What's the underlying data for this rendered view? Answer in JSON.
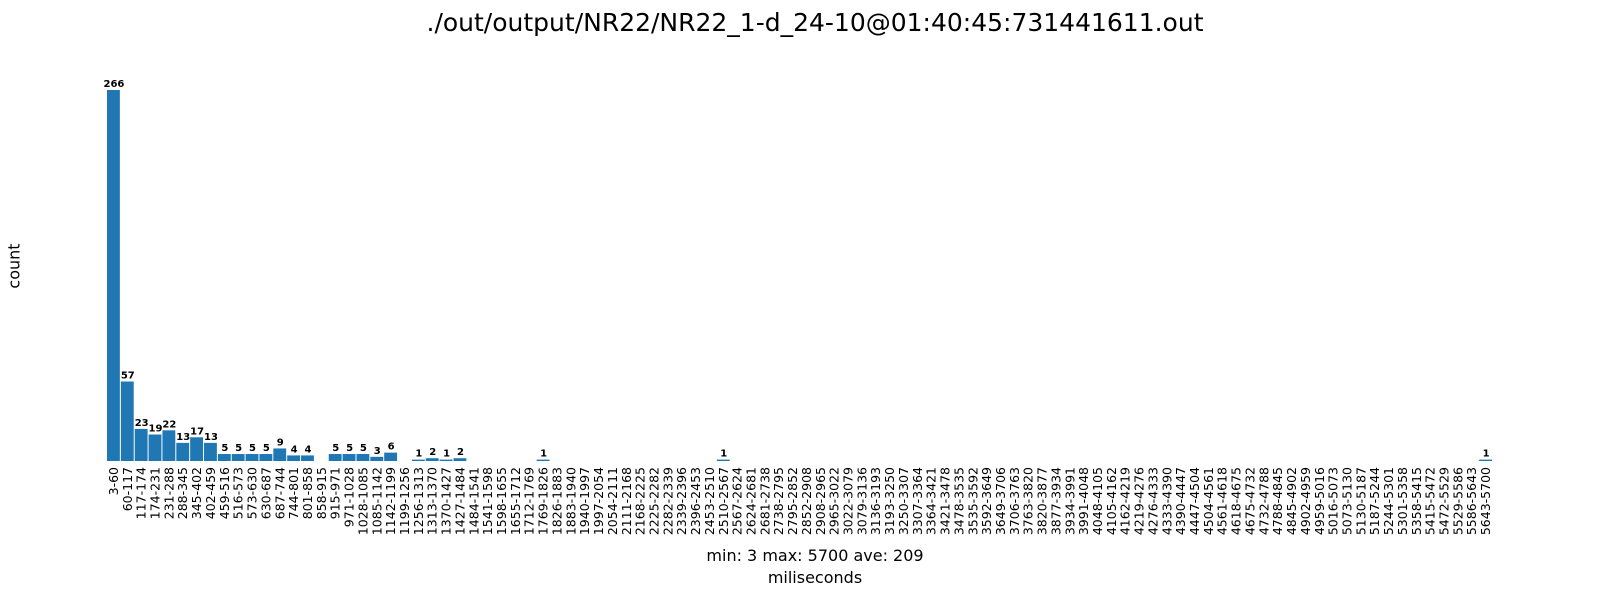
{
  "chart_data": {
    "type": "bar",
    "title": "./out/output/NR22/NR22_1-d_24-10@01:40:45:731441611.out",
    "xlabel": "miliseconds",
    "ylabel": "count",
    "stats": "min: 3    max: 5700    ave: 209",
    "ylim": [
      0,
      280
    ],
    "grid": false,
    "bar_color": "#1f77b4",
    "categories": [
      "3-60",
      "60-117",
      "117-174",
      "174-231",
      "231-288",
      "288-345",
      "345-402",
      "402-459",
      "459-516",
      "516-573",
      "573-630",
      "630-687",
      "687-744",
      "744-801",
      "801-858",
      "858-915",
      "915-971",
      "971-1028",
      "1028-1085",
      "1085-1142",
      "1142-1199",
      "1199-1256",
      "1256-1313",
      "1313-1370",
      "1370-1427",
      "1427-1484",
      "1484-1541",
      "1541-1598",
      "1598-1655",
      "1655-1712",
      "1712-1769",
      "1769-1826",
      "1826-1883",
      "1883-1940",
      "1940-1997",
      "1997-2054",
      "2054-2111",
      "2111-2168",
      "2168-2225",
      "2225-2282",
      "2282-2339",
      "2339-2396",
      "2396-2453",
      "2453-2510",
      "2510-2567",
      "2567-2624",
      "2624-2681",
      "2681-2738",
      "2738-2795",
      "2795-2852",
      "2852-2908",
      "2908-2965",
      "2965-3022",
      "3022-3079",
      "3079-3136",
      "3136-3193",
      "3193-3250",
      "3250-3307",
      "3307-3364",
      "3364-3421",
      "3421-3478",
      "3478-3535",
      "3535-3592",
      "3592-3649",
      "3649-3706",
      "3706-3763",
      "3763-3820",
      "3820-3877",
      "3877-3934",
      "3934-3991",
      "3991-4048",
      "4048-4105",
      "4105-4162",
      "4162-4219",
      "4219-4276",
      "4276-4333",
      "4333-4390",
      "4390-4447",
      "4447-4504",
      "4504-4561",
      "4561-4618",
      "4618-4675",
      "4675-4732",
      "4732-4788",
      "4788-4845",
      "4845-4902",
      "4902-4959",
      "4959-5016",
      "5016-5073",
      "5073-5130",
      "5130-5187",
      "5187-5244",
      "5244-5301",
      "5301-5358",
      "5358-5415",
      "5415-5472",
      "5472-5529",
      "5529-5586",
      "5586-5643",
      "5643-5700"
    ],
    "values": [
      266,
      57,
      23,
      19,
      22,
      13,
      17,
      13,
      5,
      5,
      5,
      5,
      9,
      4,
      4,
      0,
      5,
      5,
      5,
      3,
      6,
      0,
      1,
      2,
      1,
      2,
      0,
      0,
      0,
      0,
      0,
      1,
      0,
      0,
      0,
      0,
      0,
      0,
      0,
      0,
      0,
      0,
      0,
      0,
      1,
      0,
      0,
      0,
      0,
      0,
      0,
      0,
      0,
      0,
      0,
      0,
      0,
      0,
      0,
      0,
      0,
      0,
      0,
      0,
      0,
      0,
      0,
      0,
      0,
      0,
      0,
      0,
      0,
      0,
      0,
      0,
      0,
      0,
      0,
      0,
      0,
      0,
      0,
      0,
      0,
      0,
      0,
      0,
      0,
      0,
      0,
      0,
      0,
      0,
      0,
      0,
      0,
      0,
      0,
      1
    ]
  }
}
